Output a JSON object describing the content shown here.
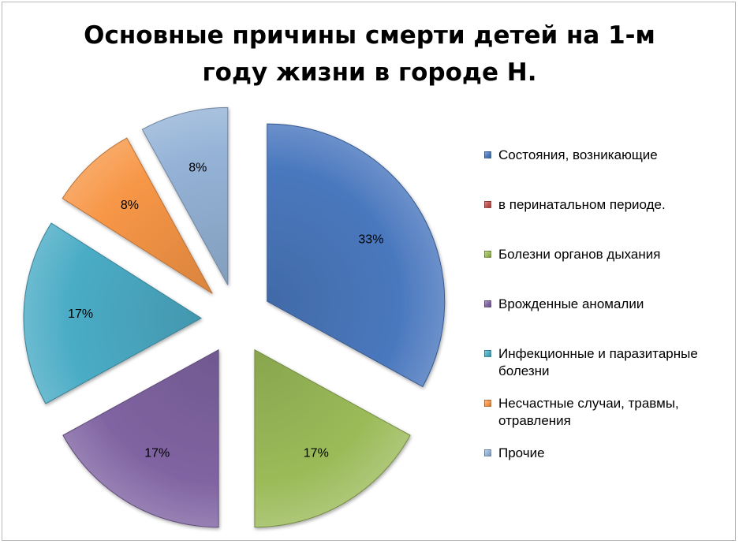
{
  "chart_data": {
    "type": "pie",
    "title_lines": [
      "Основные причины смерти детей на 1-м",
      "году жизни в городе Н."
    ],
    "exploded": true,
    "legend_position": "right",
    "slices": [
      {
        "label": "Состояния, возникающие",
        "value": 33,
        "data_label": "33%",
        "color": "#4a78be"
      },
      {
        "label": "в перинатальном периоде.",
        "value": 0,
        "data_label": "",
        "color": "#c0504d"
      },
      {
        "label": "Болезни органов дыхания",
        "value": 17,
        "data_label": "17%",
        "color": "#9bbb59"
      },
      {
        "label": "Врожденные аномалии",
        "value": 17,
        "data_label": "17%",
        "color": "#8064a2"
      },
      {
        "label": "Инфекционные и паразитарные болезни",
        "value": 17,
        "data_label": "17%",
        "color": "#4bacc6"
      },
      {
        "label": "Несчастные случаи, травмы, отравления",
        "value": 8,
        "data_label": "8%",
        "color": "#f79646"
      },
      {
        "label": "Прочие",
        "value": 8,
        "data_label": "8%",
        "color": "#95b3d7"
      }
    ]
  }
}
